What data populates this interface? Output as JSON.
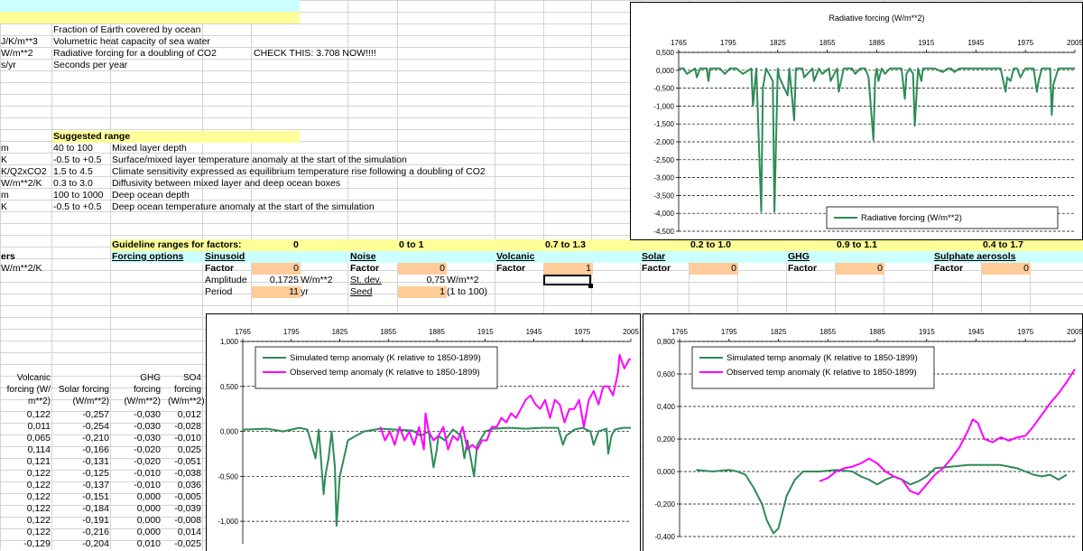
{
  "top_params": [
    {
      "unit": "J/K/m**3",
      "desc": "Volumetric heat capacity of sea water"
    },
    {
      "unit": "W/m**2",
      "desc": "Radiative forcing for a doubling of CO2",
      "note": "CHECK THIS: 3.708 NOW!!!!"
    },
    {
      "unit": "s/yr",
      "desc": "Seconds per year"
    }
  ],
  "fraction_desc": "Fraction of Earth covered by ocean",
  "suggested_range_label": "Suggested range",
  "range_rows": [
    {
      "unit": "m",
      "range": "40 to 100",
      "desc": "Mixed layer depth"
    },
    {
      "unit": "K",
      "range": "-0.5 to +0.5",
      "desc": "Surface/mixed layer temperature anomaly at the start of the simulation"
    },
    {
      "unit": "K/Q2xCO2",
      "range": "1.5 to 4.5",
      "desc": "Climate sensitivity expressed as equilibrium temperature rise following a doubling of CO2"
    },
    {
      "unit": "W/m**2/K",
      "range": "0.3 to 3.0",
      "desc": "Diffusivity between mixed layer and deep ocean boxes"
    },
    {
      "unit": "m",
      "range": "100 to 1000",
      "desc": "Deep ocean depth"
    },
    {
      "unit": "K",
      "range": "-0.5 to +0.5",
      "desc": "Deep ocean temperature anomaly at the start of the simulation"
    }
  ],
  "guideline_label": "Guideline ranges for factors:",
  "guideline_values": [
    "0",
    "0 to 1",
    "0.7 to 1.3",
    "0.2 to 1.0",
    "0.9 to 1.1",
    "0.4 to 1.7"
  ],
  "forcing_options_label": "Forcing options",
  "left_row_labels": [
    "ers",
    "W/m**2/K"
  ],
  "forcings": [
    {
      "name": "Sinusoid",
      "factor_label": "Factor",
      "factor": "0"
    },
    {
      "name": "Noise",
      "factor_label": "Factor",
      "factor": "0"
    },
    {
      "name": "Volcanic",
      "factor_label": "Factor",
      "factor": "1"
    },
    {
      "name": "Solar",
      "factor_label": "Factor",
      "factor": "0"
    },
    {
      "name": "GHG",
      "factor_label": "Factor",
      "factor": "0"
    },
    {
      "name": "Sulphate aerosols",
      "factor_label": "Factor",
      "factor": "0"
    }
  ],
  "sinusoid": {
    "amplitude_label": "Amplitude",
    "amplitude": "0,1725",
    "amplitude_unit": "W/m**2",
    "period_label": "Period",
    "period": "11",
    "period_unit": "yr"
  },
  "noise": {
    "stdev_label": "St. dev.",
    "stdev": "0,75",
    "stdev_unit": "W/m**2",
    "seed_label": "Seed",
    "seed": "1",
    "seed_unit": "(1 to 100)"
  },
  "table": {
    "headers": [
      "Volcanic forcing (W/ m**2)",
      "Solar forcing (W/m**2)",
      "GHG forcing (W/m**2)",
      "SO4 forcing (W/m**2)"
    ],
    "rows": [
      [
        "0,122",
        "-0,257",
        "-0,030",
        "0,012"
      ],
      [
        "0,011",
        "-0,254",
        "-0,030",
        "-0,028"
      ],
      [
        "0,065",
        "-0,210",
        "-0,030",
        "-0,010"
      ],
      [
        "0,114",
        "-0,166",
        "-0,020",
        "0,025"
      ],
      [
        "0,121",
        "-0,131",
        "-0,020",
        "-0,051"
      ],
      [
        "0,122",
        "-0,125",
        "-0,010",
        "-0,038"
      ],
      [
        "0,122",
        "-0,137",
        "-0,010",
        "0,036"
      ],
      [
        "0,122",
        "-0,151",
        "0,000",
        "-0,005"
      ],
      [
        "0,122",
        "-0,184",
        "0,000",
        "-0,039"
      ],
      [
        "0,122",
        "-0,191",
        "0,000",
        "-0,008"
      ],
      [
        "0,122",
        "-0,216",
        "0,000",
        "0,014"
      ],
      [
        "-0,129",
        "-0,204",
        "0,010",
        "-0,025"
      ]
    ]
  },
  "colors": {
    "cyan": "#ccffff",
    "yellow": "#ffff99",
    "orange": "#ffcc99",
    "green": "#2e8b57",
    "magenta": "#ff00ff"
  },
  "chart_data": [
    {
      "type": "line",
      "title": "Radiative forcing (W/m**2)",
      "x_ticks": [
        "1765",
        "1795",
        "1825",
        "1855",
        "1885",
        "1915",
        "1945",
        "1975",
        "2005"
      ],
      "y_ticks": [
        "0,500",
        "0,000",
        "-0,500",
        "-1,000",
        "-1,500",
        "-2,000",
        "-2,500",
        "-3,000",
        "-3,500",
        "-4,000",
        "-4,500"
      ],
      "xlim": [
        1765,
        2005
      ],
      "ylim": [
        -4.5,
        0.5
      ],
      "series": [
        {
          "name": "Radiative forcing (W/m**2)",
          "color": "#2e8b57",
          "x": [
            1765,
            1768,
            1770,
            1775,
            1776,
            1778,
            1782,
            1783,
            1784,
            1790,
            1793,
            1796,
            1800,
            1804,
            1809,
            1810,
            1812,
            1815,
            1816,
            1818,
            1822,
            1823,
            1825,
            1826,
            1831,
            1832,
            1835,
            1836,
            1840,
            1841,
            1846,
            1847,
            1850,
            1852,
            1856,
            1857,
            1861,
            1862,
            1865,
            1870,
            1872,
            1875,
            1878,
            1880,
            1883,
            1884,
            1885,
            1886,
            1888,
            1890,
            1893,
            1900,
            1902,
            1903,
            1905,
            1907,
            1908,
            1910,
            1912,
            1913,
            1915,
            1920,
            1925,
            1928,
            1930,
            1932,
            1935,
            1940,
            1945,
            1950,
            1955,
            1960,
            1963,
            1964,
            1966,
            1968,
            1970,
            1972,
            1975,
            1976,
            1980,
            1982,
            1983,
            1985,
            1990,
            1991,
            1992,
            1995,
            2000,
            2005
          ],
          "y": [
            0.05,
            0.05,
            -0.1,
            0.05,
            -0.2,
            0.05,
            0.05,
            -0.3,
            0.05,
            0.05,
            -0.1,
            0.05,
            0.05,
            -0.1,
            0.05,
            -1.0,
            0.05,
            -3.95,
            -0.5,
            0.05,
            -0.3,
            -3.95,
            0.05,
            -0.2,
            -0.7,
            0.05,
            -1.4,
            0.05,
            0.05,
            -0.2,
            0.05,
            -0.3,
            0.05,
            -0.1,
            0.05,
            -0.3,
            0.05,
            -0.6,
            0.05,
            0.05,
            -0.1,
            0.05,
            0.05,
            -0.2,
            -1.95,
            -0.2,
            0.05,
            -0.3,
            0.05,
            -0.1,
            0.05,
            0.05,
            -0.8,
            -0.1,
            0.05,
            -0.1,
            -1.55,
            0.05,
            -0.3,
            0.05,
            0.05,
            0.05,
            -0.05,
            0.05,
            0.05,
            -0.05,
            0.05,
            0.05,
            0.05,
            0.05,
            0.05,
            0.05,
            -0.6,
            -0.2,
            -0.3,
            0.05,
            0.05,
            -0.2,
            0.05,
            0.05,
            0.05,
            -0.6,
            -0.3,
            0.05,
            0.05,
            -1.25,
            -0.4,
            0.05,
            0.05,
            0.05
          ]
        }
      ]
    },
    {
      "type": "line",
      "title": "",
      "x_ticks": [
        "1765",
        "1795",
        "1825",
        "1855",
        "1885",
        "1915",
        "1945",
        "1975",
        "2005"
      ],
      "y_ticks": [
        "1,000",
        "0,500",
        "0,000",
        "-0,500",
        "-1,000"
      ],
      "xlim": [
        1765,
        2005
      ],
      "ylim": [
        -1.25,
        1.0
      ],
      "series": [
        {
          "name": "Simulated temp anomaly (K relative to 1850-1899)",
          "color": "#2e8b57",
          "x": [
            1765,
            1780,
            1790,
            1800,
            1805,
            1810,
            1812,
            1815,
            1816,
            1818,
            1820,
            1822,
            1823,
            1825,
            1830,
            1835,
            1840,
            1850,
            1860,
            1870,
            1875,
            1880,
            1883,
            1885,
            1886,
            1890,
            1895,
            1900,
            1902,
            1904,
            1908,
            1910,
            1915,
            1920,
            1930,
            1940,
            1950,
            1960,
            1963,
            1965,
            1970,
            1975,
            1980,
            1982,
            1985,
            1990,
            1991,
            1993,
            1995,
            2000,
            2005
          ],
          "y": [
            0.02,
            0.03,
            0.0,
            0.04,
            0.02,
            -0.3,
            0.02,
            -0.7,
            -0.5,
            -0.3,
            0.0,
            -0.4,
            -1.05,
            -0.5,
            -0.1,
            -0.05,
            0.0,
            0.03,
            0.02,
            0.01,
            -0.05,
            0.0,
            -0.4,
            -0.2,
            -0.05,
            -0.1,
            0.02,
            -0.05,
            -0.3,
            -0.1,
            -0.5,
            -0.15,
            0.0,
            0.03,
            0.04,
            0.03,
            0.04,
            0.04,
            -0.15,
            -0.05,
            0.02,
            0.04,
            0.0,
            -0.15,
            0.0,
            0.03,
            -0.25,
            -0.05,
            0.02,
            0.04,
            0.04
          ]
        },
        {
          "name": "Observed temp anomaly (K relative to 1850-1899)",
          "color": "#ff00ff",
          "x": [
            1850,
            1853,
            1856,
            1859,
            1862,
            1865,
            1868,
            1871,
            1874,
            1877,
            1878,
            1880,
            1883,
            1886,
            1889,
            1892,
            1895,
            1898,
            1901,
            1904,
            1907,
            1910,
            1913,
            1916,
            1919,
            1922,
            1925,
            1928,
            1931,
            1934,
            1937,
            1940,
            1943,
            1946,
            1949,
            1952,
            1955,
            1958,
            1961,
            1964,
            1967,
            1970,
            1973,
            1976,
            1979,
            1982,
            1985,
            1988,
            1991,
            1994,
            1997,
            1998,
            2001,
            2004,
            2005
          ],
          "y": [
            0.05,
            -0.1,
            0.0,
            -0.15,
            0.05,
            -0.1,
            0.0,
            -0.15,
            0.05,
            -0.2,
            0.2,
            0.0,
            -0.1,
            -0.05,
            0.05,
            -0.2,
            -0.05,
            -0.1,
            0.05,
            -0.2,
            -0.15,
            -0.2,
            -0.1,
            -0.1,
            0.05,
            0.05,
            0.15,
            0.1,
            0.2,
            0.15,
            0.25,
            0.35,
            0.4,
            0.3,
            0.25,
            0.35,
            0.15,
            0.35,
            0.3,
            0.1,
            0.25,
            0.25,
            0.35,
            0.05,
            0.35,
            0.45,
            0.3,
            0.5,
            0.5,
            0.4,
            0.65,
            0.85,
            0.7,
            0.8,
            0.8
          ]
        }
      ]
    },
    {
      "type": "line",
      "title": "",
      "x_ticks": [
        "1765",
        "1795",
        "1825",
        "1855",
        "1885",
        "1915",
        "1945",
        "1975",
        "2005"
      ],
      "y_ticks": [
        "0,800",
        "0,600",
        "0,400",
        "0,200",
        "0,000",
        "-0,200",
        "-0,400"
      ],
      "xlim": [
        1765,
        2005
      ],
      "ylim": [
        -0.4,
        0.8
      ],
      "series": [
        {
          "name": "Simulated temp anomaly (K relative to 1850-1899)",
          "color": "#2e8b57",
          "x": [
            1775,
            1785,
            1795,
            1800,
            1805,
            1810,
            1815,
            1818,
            1822,
            1825,
            1830,
            1835,
            1840,
            1850,
            1860,
            1870,
            1875,
            1880,
            1885,
            1890,
            1895,
            1900,
            1905,
            1910,
            1915,
            1920,
            1930,
            1940,
            1950,
            1960,
            1965,
            1970,
            1975,
            1980,
            1985,
            1990,
            1995,
            2000
          ],
          "y": [
            0.01,
            0.0,
            0.01,
            0.0,
            -0.02,
            -0.1,
            -0.2,
            -0.3,
            -0.38,
            -0.35,
            -0.15,
            -0.05,
            0.0,
            0.0,
            0.01,
            0.0,
            -0.03,
            -0.05,
            -0.08,
            -0.05,
            -0.03,
            -0.05,
            -0.08,
            -0.06,
            -0.03,
            0.02,
            0.03,
            0.04,
            0.04,
            0.04,
            0.03,
            0.02,
            0.0,
            -0.02,
            -0.03,
            -0.02,
            -0.05,
            -0.02
          ]
        },
        {
          "name": "Observed temp anomaly (K relative to 1850-1899)",
          "color": "#ff00ff",
          "x": [
            1850,
            1855,
            1860,
            1865,
            1870,
            1875,
            1880,
            1885,
            1890,
            1895,
            1900,
            1905,
            1910,
            1915,
            1920,
            1925,
            1930,
            1935,
            1940,
            1943,
            1946,
            1950,
            1955,
            1960,
            1965,
            1970,
            1975,
            1980,
            1985,
            1990,
            1995,
            2000,
            2005
          ],
          "y": [
            -0.06,
            -0.04,
            0.0,
            0.02,
            0.03,
            0.05,
            0.08,
            0.05,
            0.0,
            -0.03,
            -0.05,
            -0.12,
            -0.14,
            -0.08,
            -0.02,
            0.02,
            0.08,
            0.15,
            0.25,
            0.32,
            0.3,
            0.2,
            0.18,
            0.21,
            0.19,
            0.21,
            0.22,
            0.28,
            0.35,
            0.42,
            0.48,
            0.55,
            0.63
          ]
        }
      ]
    }
  ]
}
